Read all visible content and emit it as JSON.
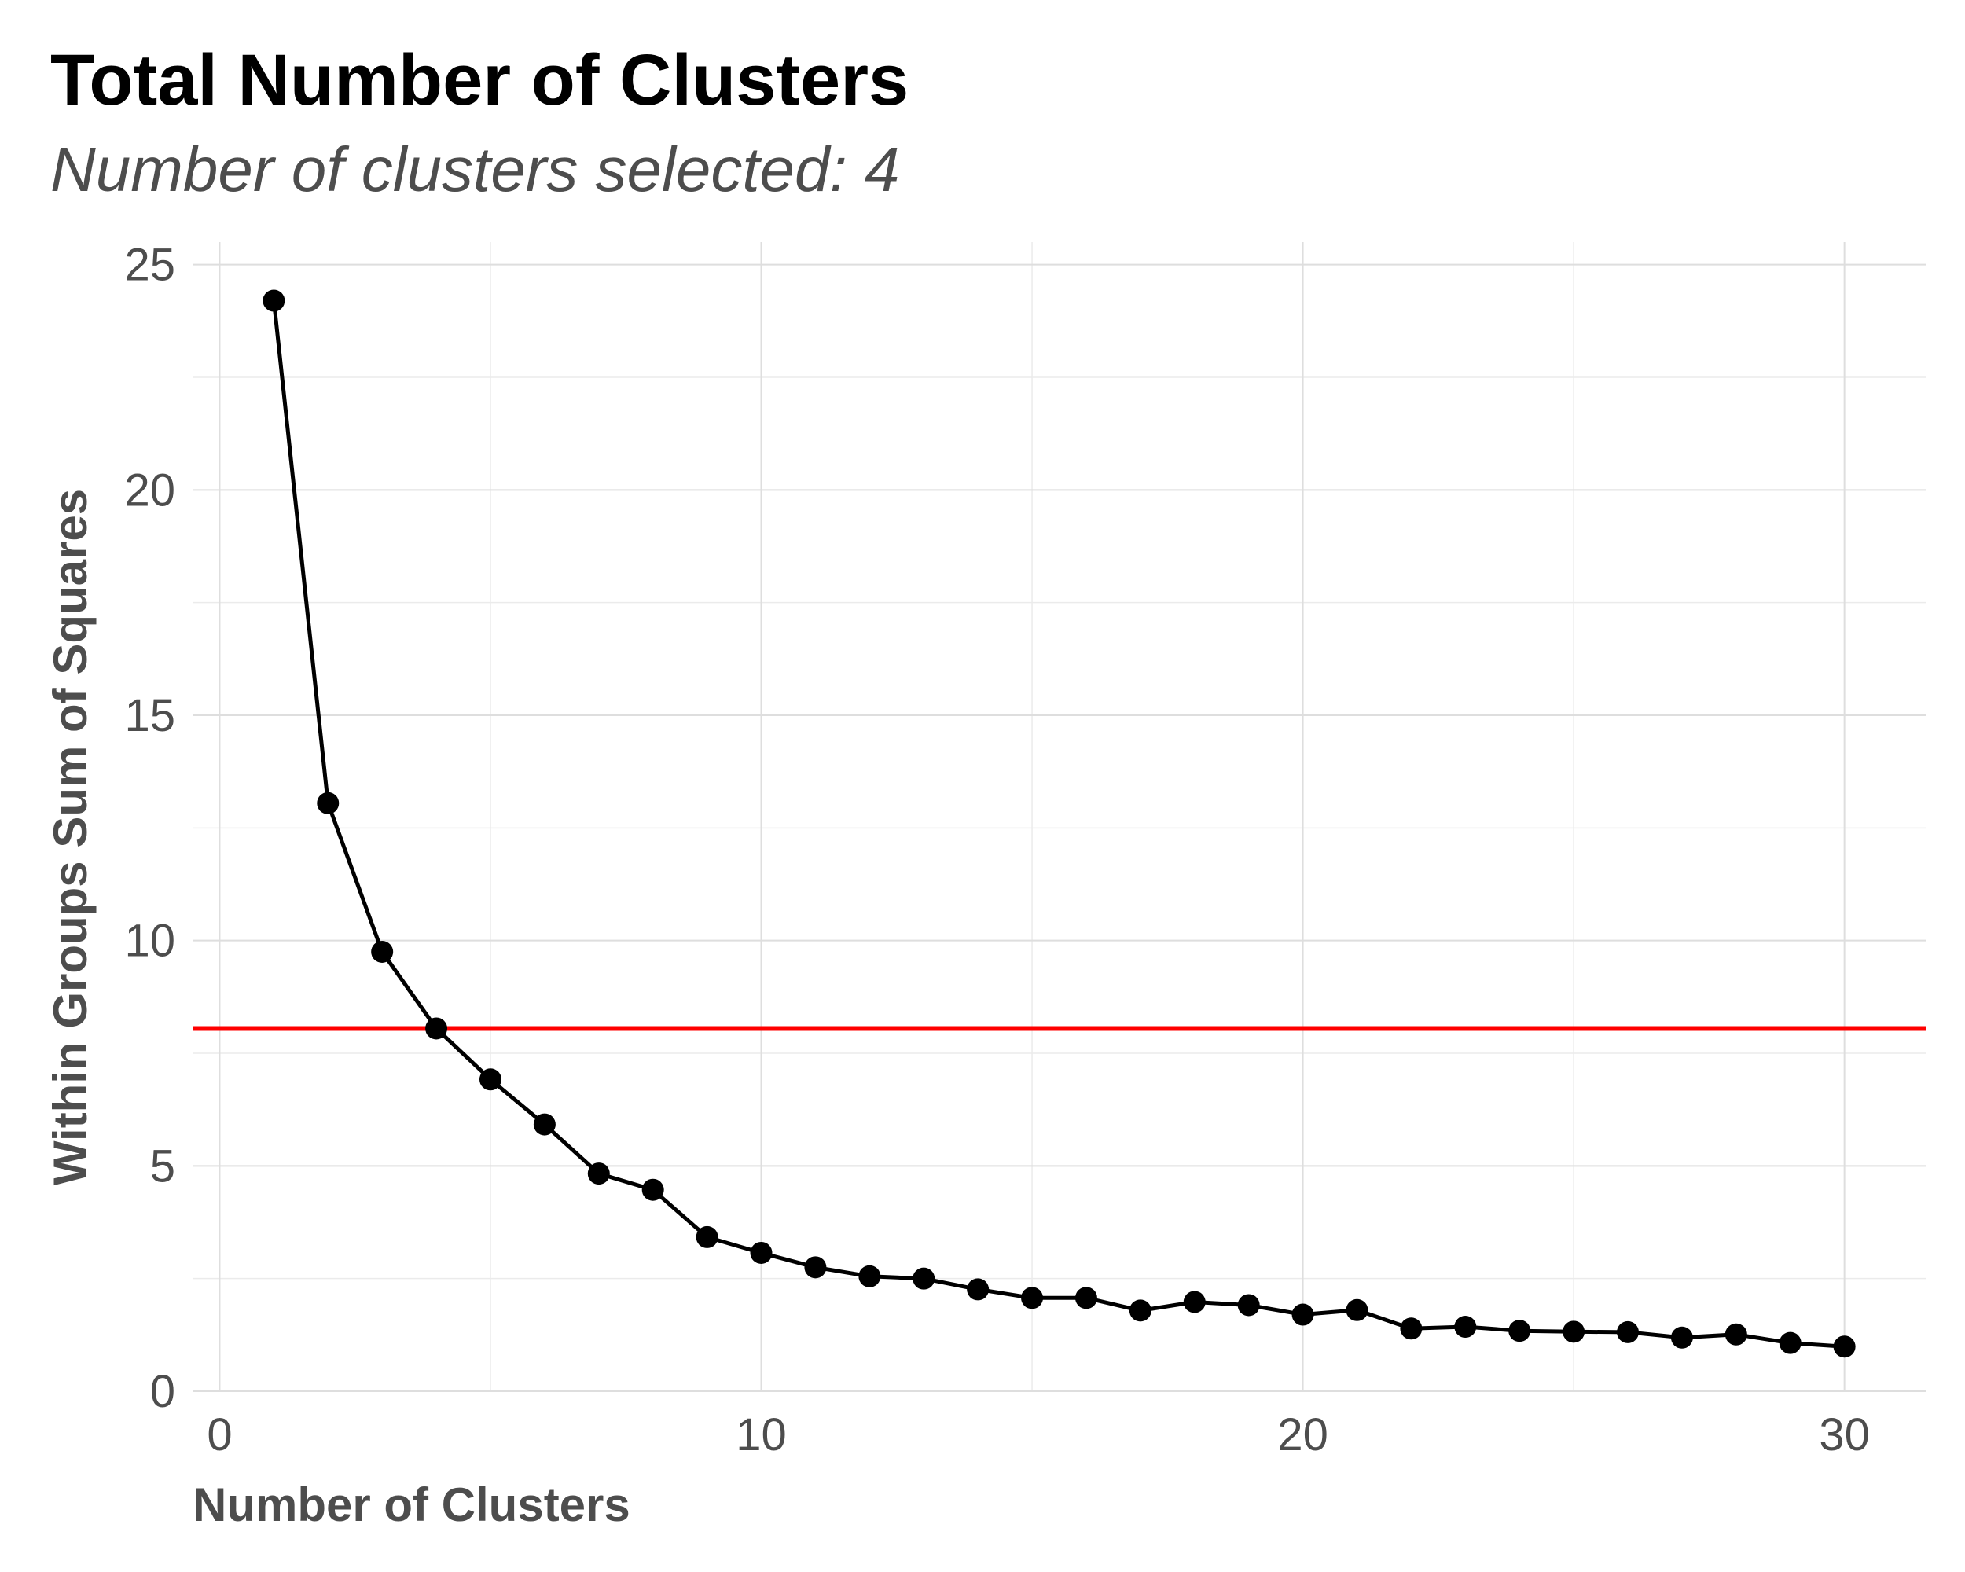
{
  "chart_data": {
    "type": "line",
    "title": "Total Number of Clusters",
    "subtitle": "Number of clusters selected: 4",
    "xlabel": "Number of Clusters",
    "ylabel": "Within Groups Sum of Squares",
    "xlim": [
      -0.5,
      31.5
    ],
    "ylim": [
      0,
      25.5
    ],
    "x_ticks": [
      0,
      10,
      20,
      30
    ],
    "y_ticks": [
      0,
      5,
      10,
      15,
      20,
      25
    ],
    "grid": true,
    "series": [
      {
        "x": [
          1,
          2,
          3,
          4,
          5,
          6,
          7,
          8,
          9,
          10,
          11,
          12,
          13,
          14,
          15,
          16,
          17,
          18,
          19,
          20,
          21,
          22,
          23,
          24,
          25,
          26,
          27,
          28,
          29,
          30
        ],
        "values": [
          24.2,
          13.05,
          9.75,
          8.05,
          6.92,
          5.92,
          4.83,
          4.47,
          3.42,
          3.07,
          2.75,
          2.55,
          2.5,
          2.26,
          2.07,
          2.07,
          1.79,
          1.98,
          1.91,
          1.7,
          1.8,
          1.39,
          1.43,
          1.34,
          1.32,
          1.31,
          1.19,
          1.26,
          1.07,
          0.99
        ],
        "color": "#000000"
      }
    ],
    "hline": {
      "y": 8.05,
      "color": "#ff0000"
    }
  }
}
